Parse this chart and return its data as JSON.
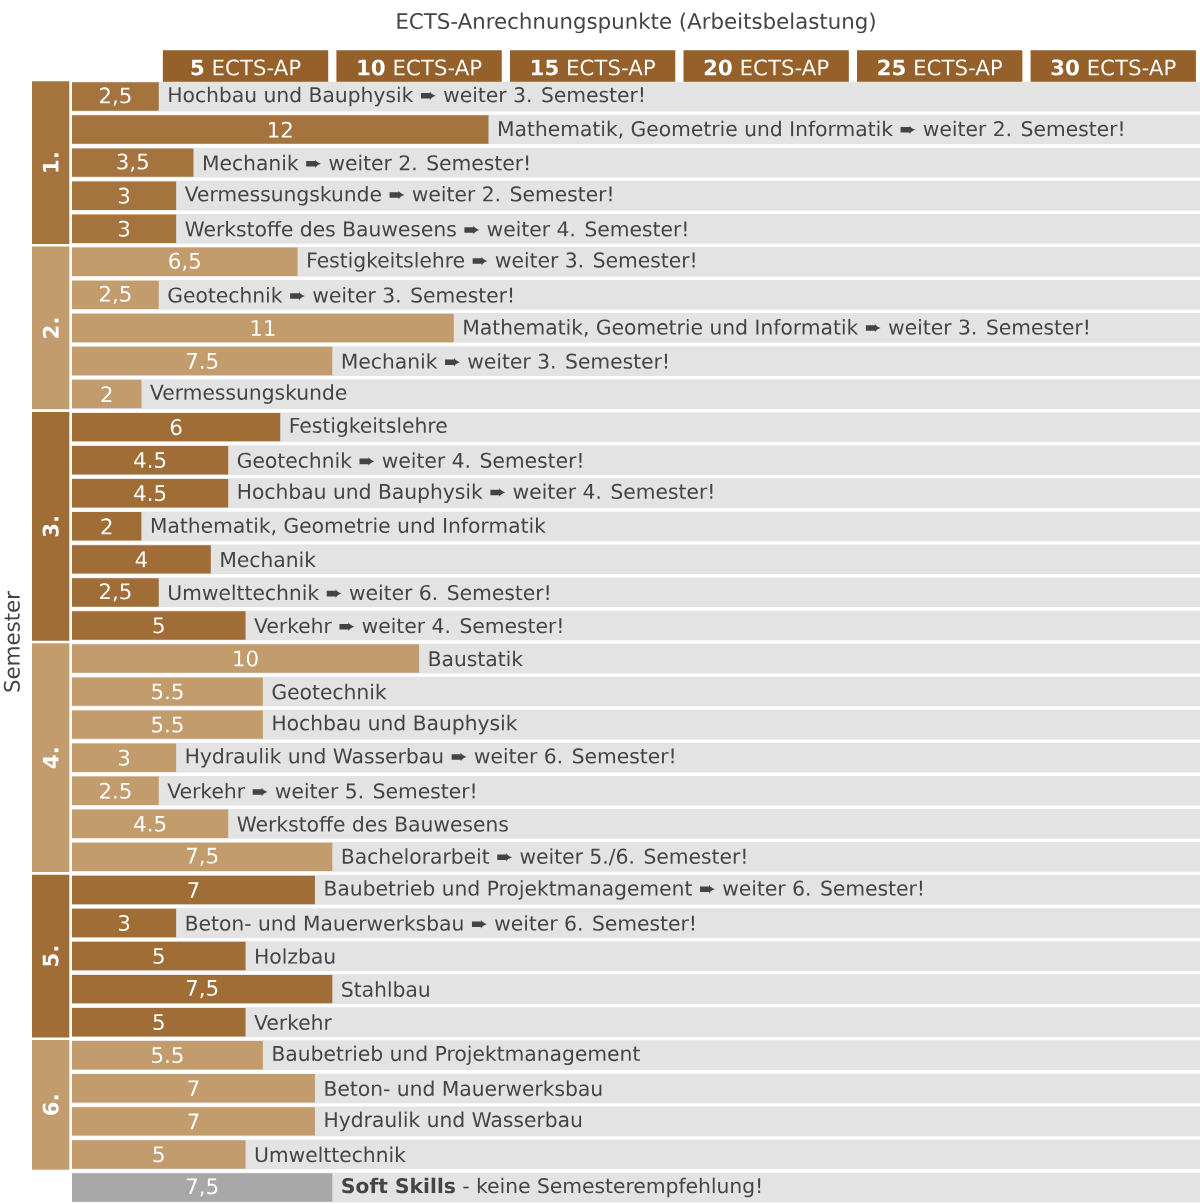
{
  "chart_data": {
    "type": "bar",
    "orientation": "horizontal",
    "xlabel": "ECTS-Anrechnungspunkte (Arbeitsbelastung)",
    "ylabel": "Semester",
    "xlim": [
      0,
      32.5
    ],
    "xticks": [
      {
        "value": 5,
        "label": "**5** ECTS-AP"
      },
      {
        "value": 10,
        "label": "**10** ECTS-AP"
      },
      {
        "value": 15,
        "label": "**15** ECTS-AP"
      },
      {
        "value": 20,
        "label": "**20** ECTS-AP"
      },
      {
        "value": 25,
        "label": "**25** ECTS-AP"
      },
      {
        "value": 30,
        "label": "**30** ECTS-AP"
      }
    ],
    "categories": [
      "Hochbau und Bauphysik ➨ weiter 3. Semester!",
      "Mathematik, Geometrie und Informatik ➨ weiter 2. Semester!",
      "Mechanik ➨ weiter 2. Semester!",
      "Vermessungskunde ➨ weiter 2. Semester!",
      "Werkstoffe des Bauwesens ➨ weiter 4. Semester!",
      "Festigkeitslehre ➨ weiter 3. Semester!",
      "Geotechnik ➨ weiter 3. Semester!",
      "Mathematik, Geometrie und Informatik ➨ weiter 3. Semester!",
      "Mechanik ➨ weiter 3. Semester!",
      "Vermessungskunde",
      "Festigkeitslehre",
      "Geotechnik ➨ weiter 4. Semester!",
      "Hochbau und Bauphysik ➨ weiter 4. Semester!",
      "Mathematik, Geometrie und Informatik",
      "Mechanik",
      "Umwelttechnik ➨ weiter 6. Semester!",
      "Verkehr ➨ weiter 4. Semester!",
      "Baustatik",
      "Geotechnik",
      "Hochbau und Bauphysik",
      "Hydraulik und Wasserbau ➨ weiter 6. Semester!",
      "Verkehr ➨ weiter 5. Semester!",
      "Werkstoffe des Bauwesens",
      "Bachelorarbeit ➨ weiter 5./6. Semester!",
      "Baubetrieb und Projektmanagement ➨ weiter 6. Semester!",
      "Beton- und Mauerwerksbau ➨ weiter 6. Semester!",
      "Holzbau",
      "Stahlbau",
      "Verkehr",
      "Baubetrieb und Projektmanagement",
      "Beton- und Mauerwerksbau",
      "Hydraulik und Wasserbau",
      "Umwelttechnik",
      "**Soft Skills** - keine Semesterempfehlung!"
    ],
    "series": [
      {
        "name": "1.",
        "color": "#a5743e",
        "values": [
          2.5,
          12,
          3.5,
          3,
          3,
          null,
          null,
          null,
          null,
          null,
          null,
          null,
          null,
          null,
          null,
          null,
          null,
          null,
          null,
          null,
          null,
          null,
          null,
          null,
          null,
          null,
          null,
          null,
          null,
          null,
          null,
          null,
          null,
          null
        ],
        "value_labels": [
          "2,5",
          "12",
          "3,5",
          "3",
          "3",
          null,
          null,
          null,
          null,
          null,
          null,
          null,
          null,
          null,
          null,
          null,
          null,
          null,
          null,
          null,
          null,
          null,
          null,
          null,
          null,
          null,
          null,
          null,
          null,
          null,
          null,
          null,
          null,
          null
        ]
      },
      {
        "name": "2.",
        "color": "#c39c6d",
        "values": [
          null,
          null,
          null,
          null,
          null,
          6.5,
          2.5,
          11,
          7.5,
          2,
          null,
          null,
          null,
          null,
          null,
          null,
          null,
          null,
          null,
          null,
          null,
          null,
          null,
          null,
          null,
          null,
          null,
          null,
          null,
          null,
          null,
          null,
          null,
          null
        ],
        "value_labels": [
          null,
          null,
          null,
          null,
          null,
          "6,5",
          "2,5",
          "11",
          "7.5",
          "2",
          null,
          null,
          null,
          null,
          null,
          null,
          null,
          null,
          null,
          null,
          null,
          null,
          null,
          null,
          null,
          null,
          null,
          null,
          null,
          null,
          null,
          null,
          null,
          null
        ]
      },
      {
        "name": "3.",
        "color": "#a16d36",
        "values": [
          null,
          null,
          null,
          null,
          null,
          null,
          null,
          null,
          null,
          null,
          6,
          4.5,
          4.5,
          2,
          4,
          2.5,
          5,
          null,
          null,
          null,
          null,
          null,
          null,
          null,
          null,
          null,
          null,
          null,
          null,
          null,
          null,
          null,
          null,
          null
        ],
        "value_labels": [
          null,
          null,
          null,
          null,
          null,
          null,
          null,
          null,
          null,
          null,
          "6",
          "4.5",
          "4.5",
          "2",
          "4",
          "2,5",
          "5",
          null,
          null,
          null,
          null,
          null,
          null,
          null,
          null,
          null,
          null,
          null,
          null,
          null,
          null,
          null,
          null,
          null
        ]
      },
      {
        "name": "4.",
        "color": "#c39c6d",
        "values": [
          null,
          null,
          null,
          null,
          null,
          null,
          null,
          null,
          null,
          null,
          null,
          null,
          null,
          null,
          null,
          null,
          null,
          10,
          5.5,
          5.5,
          3,
          2.5,
          4.5,
          7.5,
          null,
          null,
          null,
          null,
          null,
          null,
          null,
          null,
          null,
          null
        ],
        "value_labels": [
          null,
          null,
          null,
          null,
          null,
          null,
          null,
          null,
          null,
          null,
          null,
          null,
          null,
          null,
          null,
          null,
          null,
          "10",
          "5.5",
          "5.5",
          "3",
          "2.5",
          "4.5",
          "7,5",
          null,
          null,
          null,
          null,
          null,
          null,
          null,
          null,
          null,
          null
        ]
      },
      {
        "name": "5.",
        "color": "#a16d36",
        "values": [
          null,
          null,
          null,
          null,
          null,
          null,
          null,
          null,
          null,
          null,
          null,
          null,
          null,
          null,
          null,
          null,
          null,
          null,
          null,
          null,
          null,
          null,
          null,
          null,
          7,
          3,
          5,
          7.5,
          5,
          null,
          null,
          null,
          null,
          null
        ],
        "value_labels": [
          null,
          null,
          null,
          null,
          null,
          null,
          null,
          null,
          null,
          null,
          null,
          null,
          null,
          null,
          null,
          null,
          null,
          null,
          null,
          null,
          null,
          null,
          null,
          null,
          "7",
          "3",
          "5",
          "7,5",
          "5",
          null,
          null,
          null,
          null,
          null
        ]
      },
      {
        "name": "6.",
        "color": "#c39c6d",
        "values": [
          null,
          null,
          null,
          null,
          null,
          null,
          null,
          null,
          null,
          null,
          null,
          null,
          null,
          null,
          null,
          null,
          null,
          null,
          null,
          null,
          null,
          null,
          null,
          null,
          null,
          null,
          null,
          null,
          null,
          5.5,
          7,
          7,
          5,
          null
        ],
        "value_labels": [
          null,
          null,
          null,
          null,
          null,
          null,
          null,
          null,
          null,
          null,
          null,
          null,
          null,
          null,
          null,
          null,
          null,
          null,
          null,
          null,
          null,
          null,
          null,
          null,
          null,
          null,
          null,
          null,
          null,
          "5.5",
          "7",
          "7",
          "5",
          null
        ]
      },
      {
        "color": "#a8a8a8",
        "values": [
          null,
          null,
          null,
          null,
          null,
          null,
          null,
          null,
          null,
          null,
          null,
          null,
          null,
          null,
          null,
          null,
          null,
          null,
          null,
          null,
          null,
          null,
          null,
          null,
          null,
          null,
          null,
          null,
          null,
          null,
          null,
          null,
          null,
          7.5
        ],
        "value_labels": [
          null,
          null,
          null,
          null,
          null,
          null,
          null,
          null,
          null,
          null,
          null,
          null,
          null,
          null,
          null,
          null,
          null,
          null,
          null,
          null,
          null,
          null,
          null,
          null,
          null,
          null,
          null,
          null,
          null,
          null,
          null,
          null,
          null,
          "7,5"
        ]
      }
    ]
  }
}
